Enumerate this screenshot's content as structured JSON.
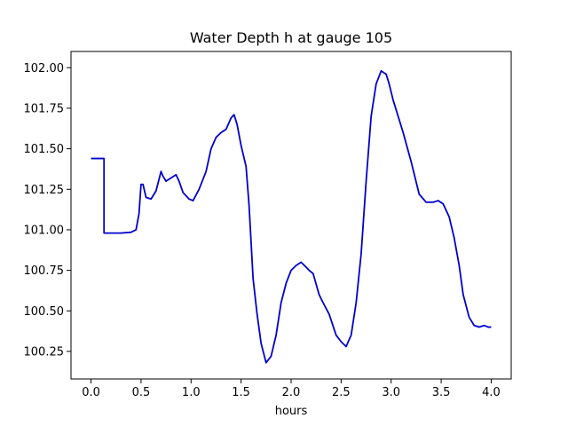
{
  "chart_data": {
    "type": "line",
    "title": "Water Depth h at gauge 105",
    "xlabel": "hours",
    "ylabel": "",
    "xlim": [
      -0.2,
      4.2
    ],
    "ylim": [
      100.08,
      102.1
    ],
    "xticks": [
      0.0,
      0.5,
      1.0,
      1.5,
      2.0,
      2.5,
      3.0,
      3.5,
      4.0
    ],
    "xtick_labels": [
      "0.0",
      "0.5",
      "1.0",
      "1.5",
      "2.0",
      "2.5",
      "3.0",
      "3.5",
      "4.0"
    ],
    "yticks": [
      100.25,
      100.5,
      100.75,
      101.0,
      101.25,
      101.5,
      101.75,
      102.0
    ],
    "ytick_labels": [
      "100.25",
      "100.50",
      "100.75",
      "101.00",
      "101.25",
      "101.50",
      "101.75",
      "102.00"
    ],
    "grid": false,
    "series": [
      {
        "color": "#0000cc",
        "x": [
          0.0,
          0.13,
          0.13,
          0.3,
          0.4,
          0.45,
          0.48,
          0.5,
          0.52,
          0.55,
          0.6,
          0.65,
          0.7,
          0.72,
          0.75,
          0.8,
          0.85,
          0.88,
          0.92,
          0.98,
          1.02,
          1.08,
          1.15,
          1.2,
          1.25,
          1.3,
          1.35,
          1.4,
          1.43,
          1.46,
          1.5,
          1.55,
          1.58,
          1.62,
          1.66,
          1.7,
          1.75,
          1.8,
          1.85,
          1.9,
          1.95,
          2.0,
          2.05,
          2.1,
          2.15,
          2.18,
          2.22,
          2.28,
          2.32,
          2.38,
          2.45,
          2.5,
          2.55,
          2.6,
          2.65,
          2.7,
          2.75,
          2.8,
          2.85,
          2.9,
          2.95,
          2.98,
          3.02,
          3.07,
          3.12,
          3.2,
          3.28,
          3.35,
          3.42,
          3.47,
          3.52,
          3.58,
          3.63,
          3.68,
          3.72,
          3.78,
          3.83,
          3.88,
          3.93,
          3.97,
          4.0
        ],
        "y": [
          101.44,
          101.44,
          100.98,
          100.98,
          100.985,
          101.0,
          101.1,
          101.28,
          101.28,
          101.2,
          101.19,
          101.24,
          101.36,
          101.33,
          101.3,
          101.32,
          101.34,
          101.3,
          101.23,
          101.19,
          101.18,
          101.25,
          101.36,
          101.5,
          101.57,
          101.6,
          101.62,
          101.69,
          101.71,
          101.65,
          101.52,
          101.39,
          101.15,
          100.7,
          100.48,
          100.3,
          100.18,
          100.22,
          100.35,
          100.55,
          100.67,
          100.75,
          100.78,
          100.8,
          100.77,
          100.75,
          100.73,
          100.6,
          100.55,
          100.48,
          100.35,
          100.31,
          100.28,
          100.35,
          100.55,
          100.85,
          101.3,
          101.7,
          101.9,
          101.98,
          101.96,
          101.9,
          101.8,
          101.7,
          101.6,
          101.42,
          101.22,
          101.17,
          101.17,
          101.18,
          101.16,
          101.08,
          100.95,
          100.78,
          100.6,
          100.46,
          100.41,
          100.4,
          100.41,
          100.4,
          100.4
        ]
      }
    ]
  }
}
